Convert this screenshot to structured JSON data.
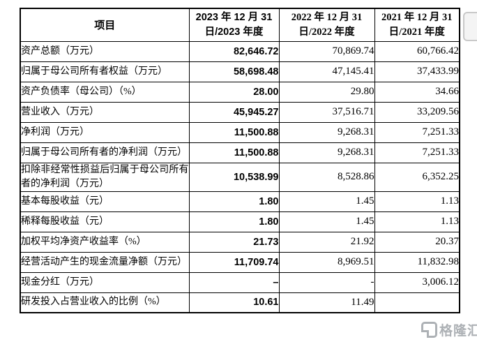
{
  "colors": {
    "background": "#ffffff",
    "table_border": "#000000",
    "text": "#000000",
    "emphasis_column_text": "#000000",
    "watermark_gray": "#a9adb2",
    "corner_widget_gray": "#c9c9c9"
  },
  "icons": {
    "watermark_logo": "gelonghui-logo"
  },
  "table": {
    "header": {
      "item": "项目",
      "col2023": [
        "2023 年 12 月 31",
        "日/2023 年度"
      ],
      "col2022": [
        "2022 年 12 月 31",
        "日/2022 年度"
      ],
      "col2021": [
        "2021 年 12 月 31",
        "日/2021 年度"
      ]
    },
    "rows": [
      {
        "item": "资产总额（万元）",
        "v2023": "82,646.72",
        "v2022": "70,869.74",
        "v2021": "60,766.42"
      },
      {
        "item": "归属于母公司所有者权益（万元）",
        "v2023": "58,698.48",
        "v2022": "47,145.41",
        "v2021": "37,433.99"
      },
      {
        "item": "资产负债率（母公司）（%）",
        "v2023": "28.00",
        "v2022": "29.80",
        "v2021": "34.66"
      },
      {
        "item": "营业收入（万元）",
        "v2023": "45,945.27",
        "v2022": "37,516.71",
        "v2021": "33,209.56"
      },
      {
        "item": "净利润（万元）",
        "v2023": "11,500.88",
        "v2022": "9,268.31",
        "v2021": "7,251.33"
      },
      {
        "item": "归属于母公司所有者的净利润（万元）",
        "v2023": "11,500.88",
        "v2022": "9,268.31",
        "v2021": "7,251.33"
      },
      {
        "item": "扣除非经常性损益后归属于母公司所有者的净利润（万元）",
        "v2023": "10,538.99",
        "v2022": "8,528.86",
        "v2021": "6,352.25"
      },
      {
        "item": "基本每股收益（元）",
        "v2023": "1.80",
        "v2022": "1.45",
        "v2021": "1.13"
      },
      {
        "item": "稀释每股收益（元）",
        "v2023": "1.80",
        "v2022": "1.45",
        "v2021": "1.13"
      },
      {
        "item": "加权平均净资产收益率（%）",
        "v2023": "21.73",
        "v2022": "21.92",
        "v2021": "20.37"
      },
      {
        "item": "经营活动产生的现金流量净额（万元）",
        "v2023": "11,709.74",
        "v2022": "8,969.51",
        "v2021": "11,832.98"
      },
      {
        "item": "现金分红（万元）",
        "v2023": "–",
        "v2022": "-",
        "v2021": "3,006.12"
      },
      {
        "item": "研发投入占营业收入的比例（%）",
        "v2023": "10.61",
        "v2022": "11.49",
        "v2021": ""
      }
    ]
  },
  "watermark": {
    "text": "格隆汇"
  }
}
